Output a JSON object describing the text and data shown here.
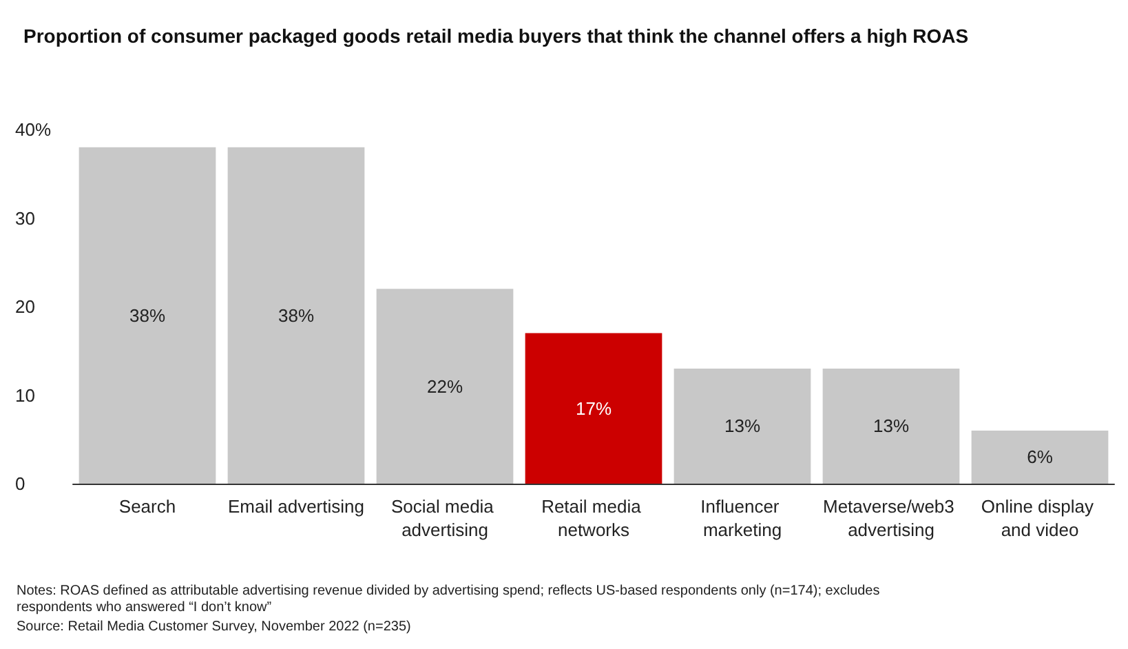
{
  "chart_data": {
    "type": "bar",
    "title": "Proportion of consumer packaged goods retail media buyers that think the channel offers a high ROAS",
    "categories": [
      "Search",
      "Email advertising",
      "Social media advertising",
      "Retail media networks",
      "Influencer marketing",
      "Metaverse/web3 advertising",
      "Online display and video"
    ],
    "values": [
      38,
      38,
      22,
      17,
      13,
      13,
      6
    ],
    "colors": [
      "#c8c8c8",
      "#c8c8c8",
      "#c8c8c8",
      "#cc0000",
      "#c8c8c8",
      "#c8c8c8",
      "#c8c8c8"
    ],
    "value_labels": [
      "38%",
      "38%",
      "22%",
      "17%",
      "13%",
      "13%",
      "6%"
    ],
    "ylim": [
      0,
      40
    ],
    "yticks": [
      0,
      10,
      20,
      30,
      {
        "value": 40,
        "label": "40%"
      }
    ],
    "annotations": [
      "Notes: ROAS defined as attributable advertising revenue divided by advertising spend; reflects US-based respondents only (n=174); excludes respondents who answered “I don’t know”",
      "Source: Retail Media Customer Survey, November 2022 (n=235)"
    ]
  }
}
